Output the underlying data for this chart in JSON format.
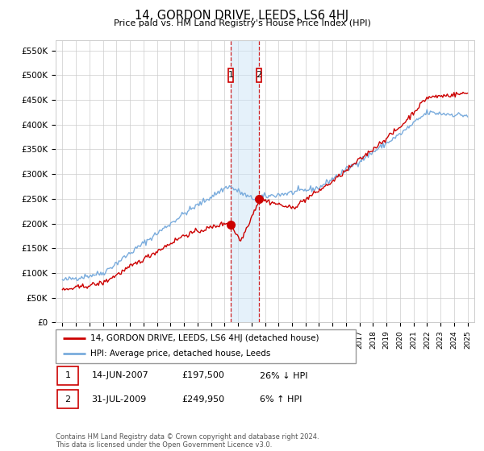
{
  "title": "14, GORDON DRIVE, LEEDS, LS6 4HJ",
  "subtitle": "Price paid vs. HM Land Registry's House Price Index (HPI)",
  "legend_line1": "14, GORDON DRIVE, LEEDS, LS6 4HJ (detached house)",
  "legend_line2": "HPI: Average price, detached house, Leeds",
  "red_color": "#cc0000",
  "blue_color": "#7aacdd",
  "sale1_date": "14-JUN-2007",
  "sale1_price": 197500,
  "sale2_date": "31-JUL-2009",
  "sale2_price": 249950,
  "sale1_hpi_text": "26% ↓ HPI",
  "sale2_hpi_text": "6% ↑ HPI",
  "footnote": "Contains HM Land Registry data © Crown copyright and database right 2024.\nThis data is licensed under the Open Government Licence v3.0.",
  "ylim": [
    0,
    570000
  ],
  "yticks": [
    0,
    50000,
    100000,
    150000,
    200000,
    250000,
    300000,
    350000,
    400000,
    450000,
    500000,
    550000
  ],
  "ytick_labels": [
    "£0",
    "£50K",
    "£100K",
    "£150K",
    "£200K",
    "£250K",
    "£300K",
    "£350K",
    "£400K",
    "£450K",
    "£500K",
    "£550K"
  ],
  "xmin": 1994.5,
  "xmax": 2025.5
}
